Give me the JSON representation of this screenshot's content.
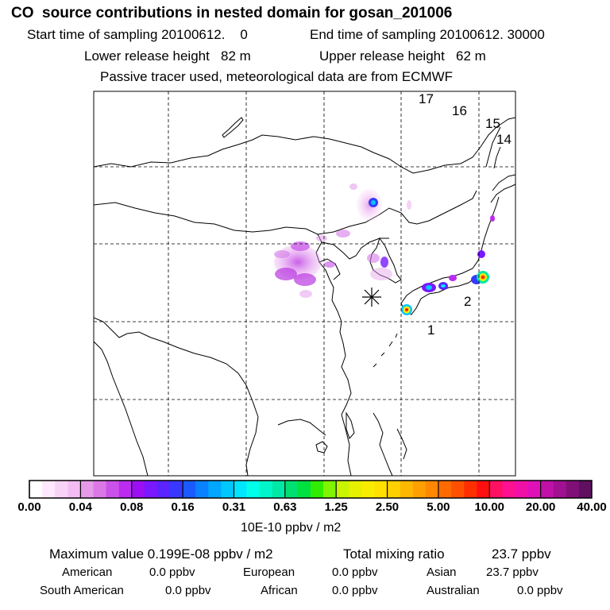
{
  "header": {
    "title": "CO  source contributions in nested domain for gosan_201006",
    "start": "Start time of sampling 20100612.    0",
    "end": "End time of sampling 20100612. 30000",
    "lower": "Lower release height   82 m",
    "upper": "Upper release height   62 m",
    "tracer": "Passive tracer used, meteorological data are from ECMWF"
  },
  "map": {
    "station_marker": "asterisk",
    "trajectory_labels": [
      "17",
      "16",
      "15",
      "14",
      "2",
      "1"
    ]
  },
  "colorbar": {
    "ticks": [
      "0.00",
      "0.04",
      "0.08",
      "0.16",
      "0.31",
      "0.63",
      "1.25",
      "2.50",
      "5.00",
      "10.00",
      "20.00",
      "40.00"
    ],
    "colors": [
      [
        "#ffffff",
        "#fde8fd",
        "#f8d3f8",
        "#f3bdf3"
      ],
      [
        "#e79ae9",
        "#db78e6",
        "#cb52e8",
        "#bb2bf0"
      ],
      [
        "#9a10f2",
        "#7a18ff",
        "#5a24ff",
        "#3838ff"
      ],
      [
        "#1a5aff",
        "#0a82ff",
        "#00a6ff",
        "#00c8ff"
      ],
      [
        "#00e6ff",
        "#00ffea",
        "#00f5c8",
        "#00e8a6"
      ],
      [
        "#00e070",
        "#00e040",
        "#30ec00",
        "#80f400"
      ],
      [
        "#c8f400",
        "#e6f000",
        "#f8ec00",
        "#ffe000"
      ],
      [
        "#ffd000",
        "#ffb800",
        "#ffa000",
        "#ff8800"
      ],
      [
        "#ff6a00",
        "#ff5000",
        "#ff3000",
        "#ff1010"
      ],
      [
        "#ff1060",
        "#ff1090",
        "#f010a8",
        "#e010b8"
      ],
      [
        "#c010a8",
        "#a01090",
        "#801078",
        "#601060"
      ]
    ],
    "units": "10E-10 ppbv / m2"
  },
  "stats": {
    "max": "Maximum value  0.199E-08 ppbv / m2",
    "total_label": "Total mixing ratio",
    "total_value": "23.7 ppbv"
  },
  "sources": [
    {
      "name": "American",
      "value": "0.0 ppbv"
    },
    {
      "name": "European",
      "value": "0.0 ppbv"
    },
    {
      "name": "Asian",
      "value": "23.7 ppbv"
    },
    {
      "name": "South American",
      "value": "0.0 ppbv"
    },
    {
      "name": "African",
      "value": "0.0 ppbv"
    },
    {
      "name": "Australian",
      "value": "0.0 ppbv"
    }
  ]
}
